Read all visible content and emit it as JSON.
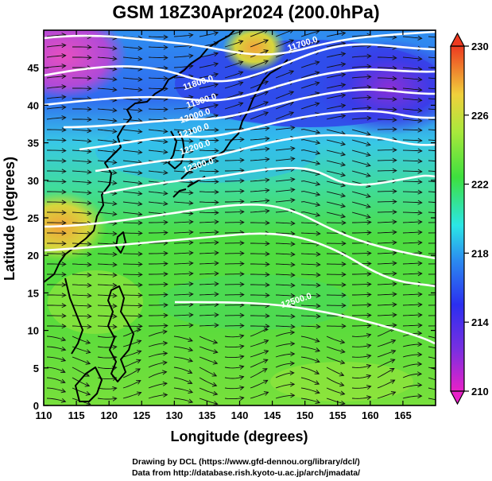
{
  "title": "GSM 18Z30Apr2024 (200.0hPa)",
  "map": {
    "xlabel": "Longitude (degrees)",
    "ylabel": "Latitude  (degrees)",
    "lon_range": [
      110,
      170
    ],
    "lat_range": [
      0,
      50
    ],
    "lon_ticks": [
      "110",
      "115",
      "120",
      "125",
      "130",
      "135",
      "140",
      "145",
      "150",
      "155",
      "160",
      "165"
    ],
    "lat_ticks": [
      "0",
      "5",
      "10",
      "15",
      "20",
      "25",
      "30",
      "35",
      "40",
      "45"
    ],
    "contour_labels": [
      {
        "text": "11700.0",
        "lon": 147.5,
        "lat": 47.2
      },
      {
        "text": "11800.0",
        "lon": 131.5,
        "lat": 42.0
      },
      {
        "text": "11900.0",
        "lon": 132.0,
        "lat": 39.6
      },
      {
        "text": "12000.0",
        "lon": 131.0,
        "lat": 37.6
      },
      {
        "text": "12100.0",
        "lon": 130.8,
        "lat": 35.6
      },
      {
        "text": "12200.0",
        "lon": 131.0,
        "lat": 33.4
      },
      {
        "text": "12300.0",
        "lon": 131.5,
        "lat": 31.0
      },
      {
        "text": "12500.0",
        "lon": 146.5,
        "lat": 13.0
      }
    ],
    "colors": {
      "warm_pink": "#e84fc0",
      "orange": "#f3a23a",
      "green": "#54dc3c",
      "light_green": "#8ee83c",
      "cyan": "#3ed6d6",
      "blue": "#2f5cf0",
      "purple": "#8a2fd6",
      "contour": "#ffffff",
      "coast": "#000000"
    }
  },
  "colorbar": {
    "ticks": [
      "230",
      "226",
      "222",
      "218",
      "214",
      "210"
    ],
    "min": 210,
    "max": 230
  },
  "credits": {
    "line1": "Drawing by DCL (https://www.gfd-dennou.org/library/dcl/)",
    "line2": "Data from http://database.rish.kyoto-u.ac.jp/arch/jmadata/"
  }
}
